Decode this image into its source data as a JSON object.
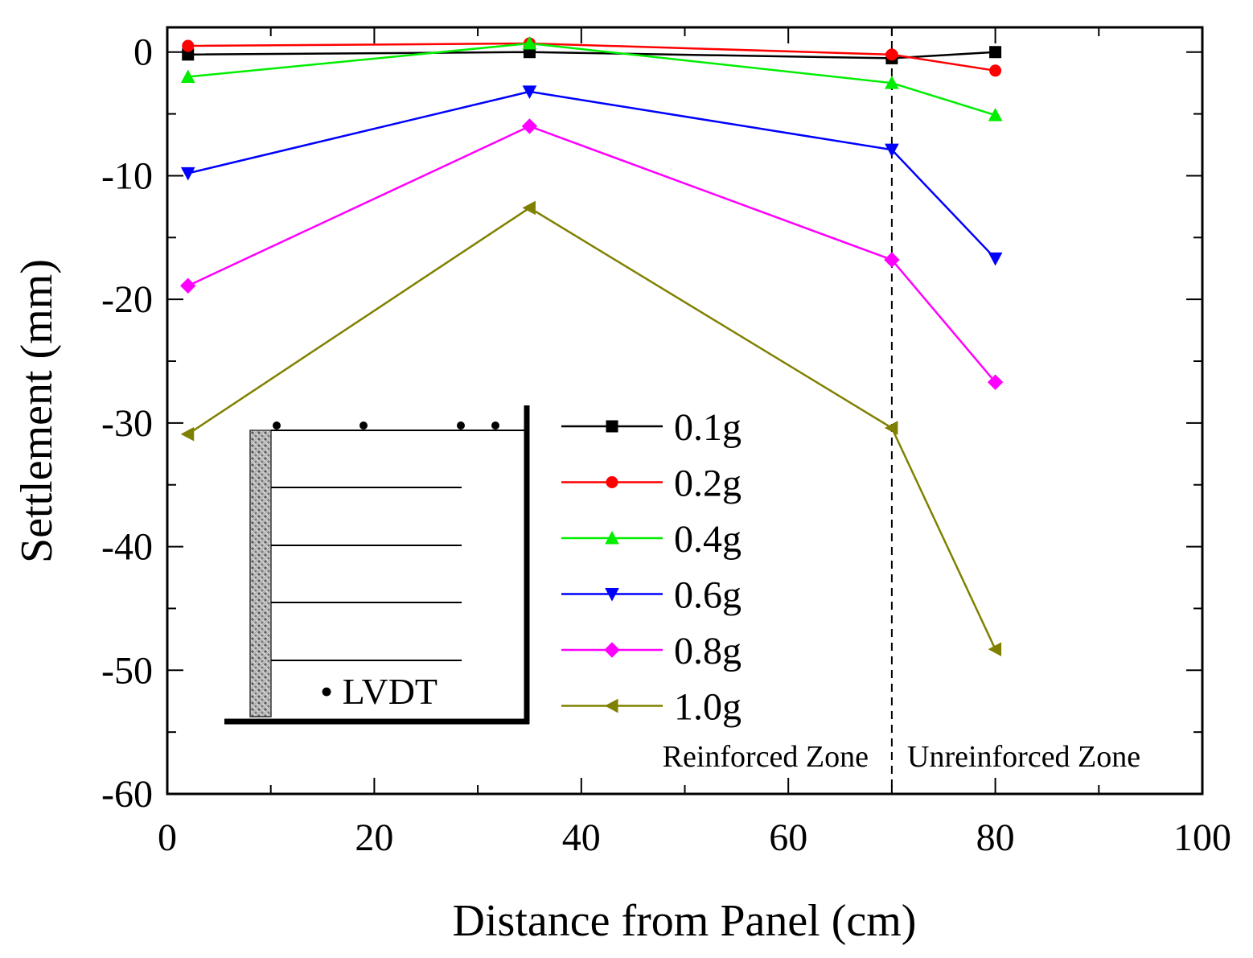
{
  "chart_data": {
    "type": "line",
    "xlabel": "Distance from Panel (cm)",
    "ylabel": "Settlement (mm)",
    "xlim": [
      0,
      100
    ],
    "ylim": [
      -60,
      2
    ],
    "xticks": [
      0,
      20,
      40,
      60,
      80,
      100
    ],
    "yticks": [
      0,
      -10,
      -20,
      -30,
      -40,
      -50,
      -60
    ],
    "xtick_labels": [
      "0",
      "20",
      "40",
      "60",
      "80",
      "100"
    ],
    "ytick_labels": [
      "0",
      "-10",
      "-20",
      "-30",
      "-40",
      "-50",
      "-60"
    ],
    "grid": false,
    "legend_position": "center-right",
    "x": [
      2,
      35,
      70,
      80
    ],
    "series": [
      {
        "name": "0.1g",
        "color": "#000000",
        "marker": "square",
        "values": [
          -0.2,
          0,
          -0.5,
          0
        ]
      },
      {
        "name": "0.2g",
        "color": "#ff0000",
        "marker": "circle",
        "values": [
          0.5,
          0.7,
          -0.2,
          -1.5
        ]
      },
      {
        "name": "0.4g",
        "color": "#00ee00",
        "marker": "triangle-up",
        "values": [
          -2,
          0.7,
          -2.5,
          -5.1
        ]
      },
      {
        "name": "0.6g",
        "color": "#0000ff",
        "marker": "triangle-down",
        "values": [
          -9.8,
          -3.2,
          -7.9,
          -16.7
        ]
      },
      {
        "name": "0.8g",
        "color": "#ff00ff",
        "marker": "diamond",
        "values": [
          -18.9,
          -6,
          -16.8,
          -26.7
        ]
      },
      {
        "name": "1.0g",
        "color": "#808000",
        "marker": "triangle-left",
        "values": [
          -30.9,
          -12.6,
          -30.4,
          -48.3
        ]
      }
    ],
    "divider_x": 70,
    "zone_labels": {
      "left": "Reinforced Zone",
      "right": "Unreinforced Zone"
    },
    "inset": {
      "label": "• LVDT"
    }
  }
}
